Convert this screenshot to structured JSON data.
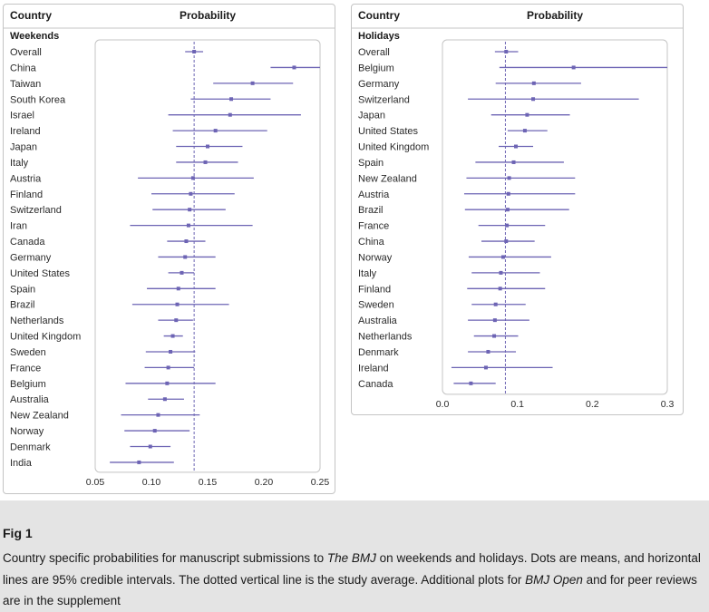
{
  "figure": {
    "label": "Fig 1",
    "caption_parts": [
      {
        "t": "Country specific probabilities for manuscript submissions to ",
        "i": false
      },
      {
        "t": "The BMJ",
        "i": true
      },
      {
        "t": " on weekends and holidays. Dots are means, and horizontal lines are 95% credible intervals. The dotted vertical line is the study average. Additional plots for ",
        "i": false
      },
      {
        "t": "BMJ Open",
        "i": true
      },
      {
        "t": " and for peer reviews are in the supplement",
        "i": false
      }
    ]
  },
  "colors": {
    "interval": "#6d64b4",
    "point": "#6d64b4",
    "reference": "#6d64b4",
    "frame": "#c4c4c4"
  },
  "chart_data": [
    {
      "type": "forest",
      "column_headers": {
        "country": "Country",
        "value": "Probability"
      },
      "group_label": "Weekends",
      "xlim": [
        0.05,
        0.25
      ],
      "xticks": [
        "0.05",
        "0.10",
        "0.15",
        "0.20",
        "0.25"
      ],
      "reference_line": 0.138,
      "rows": [
        {
          "country": "Overall",
          "mean": 0.138,
          "lo": 0.13,
          "hi": 0.146
        },
        {
          "country": "China",
          "mean": 0.227,
          "lo": 0.206,
          "hi": 0.25
        },
        {
          "country": "Taiwan",
          "mean": 0.19,
          "lo": 0.155,
          "hi": 0.226
        },
        {
          "country": "South Korea",
          "mean": 0.171,
          "lo": 0.135,
          "hi": 0.206
        },
        {
          "country": "Israel",
          "mean": 0.17,
          "lo": 0.115,
          "hi": 0.233
        },
        {
          "country": "Ireland",
          "mean": 0.157,
          "lo": 0.119,
          "hi": 0.203
        },
        {
          "country": "Japan",
          "mean": 0.15,
          "lo": 0.122,
          "hi": 0.181
        },
        {
          "country": "Italy",
          "mean": 0.148,
          "lo": 0.122,
          "hi": 0.177
        },
        {
          "country": "Austria",
          "mean": 0.137,
          "lo": 0.088,
          "hi": 0.191
        },
        {
          "country": "Finland",
          "mean": 0.135,
          "lo": 0.1,
          "hi": 0.174
        },
        {
          "country": "Switzerland",
          "mean": 0.134,
          "lo": 0.101,
          "hi": 0.166
        },
        {
          "country": "Iran",
          "mean": 0.133,
          "lo": 0.081,
          "hi": 0.19
        },
        {
          "country": "Canada",
          "mean": 0.131,
          "lo": 0.114,
          "hi": 0.148
        },
        {
          "country": "Germany",
          "mean": 0.13,
          "lo": 0.106,
          "hi": 0.157
        },
        {
          "country": "United States",
          "mean": 0.127,
          "lo": 0.115,
          "hi": 0.138
        },
        {
          "country": "Spain",
          "mean": 0.124,
          "lo": 0.096,
          "hi": 0.157
        },
        {
          "country": "Brazil",
          "mean": 0.123,
          "lo": 0.083,
          "hi": 0.169
        },
        {
          "country": "Netherlands",
          "mean": 0.122,
          "lo": 0.106,
          "hi": 0.137
        },
        {
          "country": "United Kingdom",
          "mean": 0.119,
          "lo": 0.111,
          "hi": 0.128
        },
        {
          "country": "Sweden",
          "mean": 0.117,
          "lo": 0.095,
          "hi": 0.139
        },
        {
          "country": "France",
          "mean": 0.115,
          "lo": 0.094,
          "hi": 0.138
        },
        {
          "country": "Belgium",
          "mean": 0.114,
          "lo": 0.077,
          "hi": 0.157
        },
        {
          "country": "Australia",
          "mean": 0.112,
          "lo": 0.097,
          "hi": 0.129
        },
        {
          "country": "New Zealand",
          "mean": 0.106,
          "lo": 0.073,
          "hi": 0.143
        },
        {
          "country": "Norway",
          "mean": 0.103,
          "lo": 0.076,
          "hi": 0.134
        },
        {
          "country": "Denmark",
          "mean": 0.099,
          "lo": 0.081,
          "hi": 0.117
        },
        {
          "country": "India",
          "mean": 0.089,
          "lo": 0.063,
          "hi": 0.12
        }
      ]
    },
    {
      "type": "forest",
      "column_headers": {
        "country": "Country",
        "value": "Probability"
      },
      "group_label": "Holidays",
      "xlim": [
        0.0,
        0.3
      ],
      "xticks": [
        "0.0",
        "0.1",
        "0.2",
        "0.3"
      ],
      "reference_line": 0.084,
      "rows": [
        {
          "country": "Overall",
          "mean": 0.085,
          "lo": 0.07,
          "hi": 0.101
        },
        {
          "country": "Belgium",
          "mean": 0.175,
          "lo": 0.076,
          "hi": 0.3
        },
        {
          "country": "Germany",
          "mean": 0.122,
          "lo": 0.071,
          "hi": 0.185
        },
        {
          "country": "Switzerland",
          "mean": 0.121,
          "lo": 0.034,
          "hi": 0.262
        },
        {
          "country": "Japan",
          "mean": 0.113,
          "lo": 0.065,
          "hi": 0.17
        },
        {
          "country": "United States",
          "mean": 0.11,
          "lo": 0.087,
          "hi": 0.14
        },
        {
          "country": "United Kingdom",
          "mean": 0.098,
          "lo": 0.075,
          "hi": 0.121
        },
        {
          "country": "Spain",
          "mean": 0.095,
          "lo": 0.044,
          "hi": 0.162
        },
        {
          "country": "New Zealand",
          "mean": 0.089,
          "lo": 0.032,
          "hi": 0.177
        },
        {
          "country": "Austria",
          "mean": 0.088,
          "lo": 0.029,
          "hi": 0.177
        },
        {
          "country": "Brazil",
          "mean": 0.087,
          "lo": 0.03,
          "hi": 0.169
        },
        {
          "country": "France",
          "mean": 0.086,
          "lo": 0.048,
          "hi": 0.137
        },
        {
          "country": "China",
          "mean": 0.085,
          "lo": 0.052,
          "hi": 0.123
        },
        {
          "country": "Norway",
          "mean": 0.081,
          "lo": 0.035,
          "hi": 0.145
        },
        {
          "country": "Italy",
          "mean": 0.078,
          "lo": 0.039,
          "hi": 0.13
        },
        {
          "country": "Finland",
          "mean": 0.077,
          "lo": 0.033,
          "hi": 0.137
        },
        {
          "country": "Sweden",
          "mean": 0.071,
          "lo": 0.039,
          "hi": 0.111
        },
        {
          "country": "Australia",
          "mean": 0.07,
          "lo": 0.034,
          "hi": 0.116
        },
        {
          "country": "Netherlands",
          "mean": 0.069,
          "lo": 0.042,
          "hi": 0.101
        },
        {
          "country": "Denmark",
          "mean": 0.061,
          "lo": 0.034,
          "hi": 0.098
        },
        {
          "country": "Ireland",
          "mean": 0.058,
          "lo": 0.012,
          "hi": 0.147
        },
        {
          "country": "Canada",
          "mean": 0.038,
          "lo": 0.015,
          "hi": 0.071
        }
      ]
    }
  ]
}
